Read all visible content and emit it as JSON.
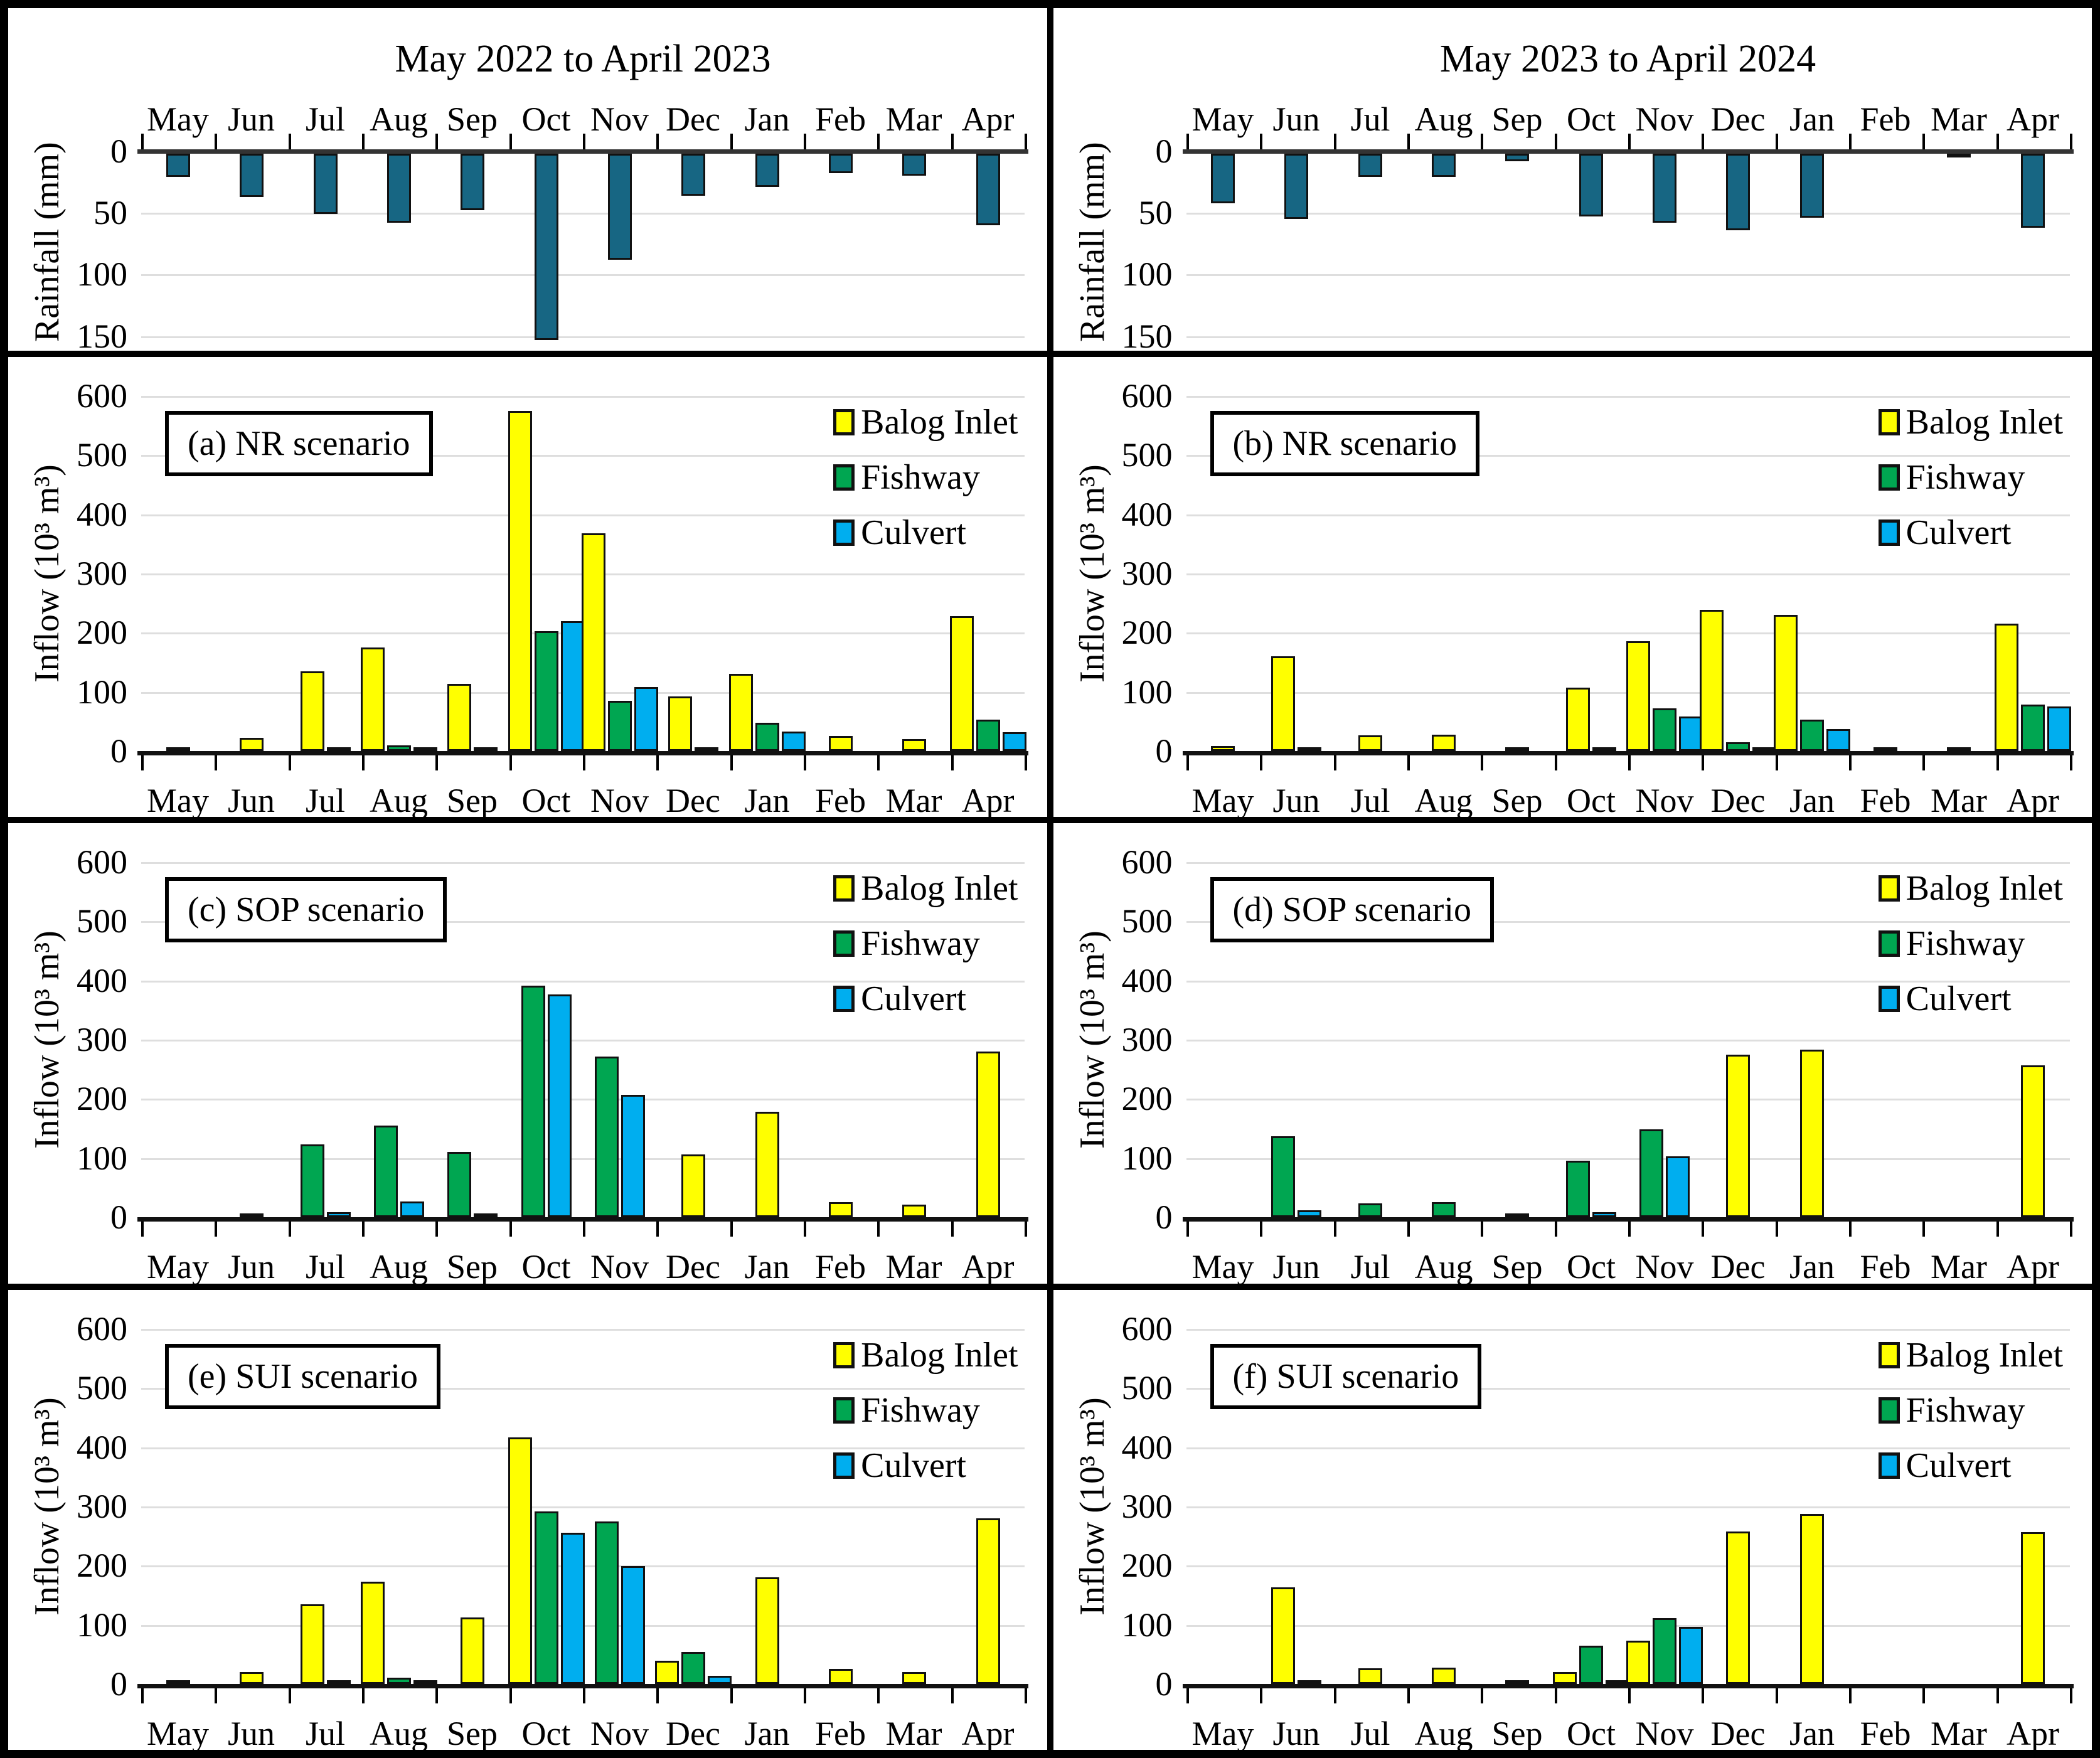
{
  "figure": {
    "type": "multi-panel monthly bar figure",
    "months": [
      "May",
      "Jun",
      "Jul",
      "Aug",
      "Sep",
      "Oct",
      "Nov",
      "Dec",
      "Jan",
      "Feb",
      "Mar",
      "Apr"
    ],
    "colors": {
      "rainfall": "#176683",
      "balog_inlet": "#FFFF00",
      "fishway": "#00A651",
      "culvert": "#00AEEF"
    }
  },
  "chart_data": [
    {
      "id": "rain-left",
      "type": "bar",
      "orientation": "inverted",
      "title": "May 2022 to April 2023",
      "ylabel": "Rainfall (mm)",
      "yticks": [
        0,
        50,
        100,
        150
      ],
      "ylim": [
        0,
        168
      ],
      "categories": [
        "May",
        "Jun",
        "Jul",
        "Aug",
        "Sep",
        "Oct",
        "Nov",
        "Dec",
        "Jan",
        "Feb",
        "Mar",
        "Apr"
      ],
      "series": [
        {
          "name": "Rainfall",
          "color": "#176683",
          "values": [
            19,
            35,
            49,
            56,
            46,
            151,
            86,
            34,
            27,
            16,
            18,
            58
          ]
        }
      ]
    },
    {
      "id": "rain-right",
      "type": "bar",
      "orientation": "inverted",
      "title": "May 2023 to April 2024",
      "ylabel": "Rainfall (mm)",
      "yticks": [
        0,
        50,
        100,
        150
      ],
      "ylim": [
        0,
        168
      ],
      "categories": [
        "May",
        "Jun",
        "Jul",
        "Aug",
        "Sep",
        "Oct",
        "Nov",
        "Dec",
        "Jan",
        "Feb",
        "Mar",
        "Apr"
      ],
      "series": [
        {
          "name": "Rainfall",
          "color": "#176683",
          "values": [
            40,
            53,
            19,
            19,
            6,
            51,
            56,
            62,
            52,
            0,
            3,
            60
          ]
        }
      ]
    },
    {
      "id": "a",
      "type": "bar",
      "panel_label": "(a) NR scenario",
      "ylabel": "Inflow (10³ m³)",
      "yticks": [
        0,
        100,
        200,
        300,
        400,
        500,
        600
      ],
      "ylim": [
        0,
        600
      ],
      "legend": [
        "Balog Inlet",
        "Fishway",
        "Culvert"
      ],
      "categories": [
        "May",
        "Jun",
        "Jul",
        "Aug",
        "Sep",
        "Oct",
        "Nov",
        "Dec",
        "Jan",
        "Feb",
        "Mar",
        "Apr"
      ],
      "series": [
        {
          "name": "Balog Inlet",
          "color": "#FFFF00",
          "values": [
            3,
            22,
            135,
            175,
            113,
            575,
            368,
            92,
            130,
            25,
            20,
            228
          ]
        },
        {
          "name": "Fishway",
          "color": "#00A651",
          "values": [
            0,
            0,
            2,
            10,
            2,
            203,
            85,
            2,
            48,
            0,
            0,
            53
          ]
        },
        {
          "name": "Culvert",
          "color": "#00AEEF",
          "values": [
            0,
            0,
            0,
            2,
            0,
            219,
            108,
            0,
            33,
            0,
            0,
            32
          ]
        }
      ]
    },
    {
      "id": "b",
      "type": "bar",
      "panel_label": "(b) NR scenario",
      "ylabel": "Inflow (10³ m³)",
      "yticks": [
        0,
        100,
        200,
        300,
        400,
        500,
        600
      ],
      "ylim": [
        0,
        600
      ],
      "legend": [
        "Balog Inlet",
        "Fishway",
        "Culvert"
      ],
      "categories": [
        "May",
        "Jun",
        "Jul",
        "Aug",
        "Sep",
        "Oct",
        "Nov",
        "Dec",
        "Jan",
        "Feb",
        "Mar",
        "Apr"
      ],
      "series": [
        {
          "name": "Balog Inlet",
          "color": "#FFFF00",
          "values": [
            8,
            160,
            27,
            28,
            3,
            107,
            185,
            238,
            230,
            3,
            3,
            215
          ]
        },
        {
          "name": "Fishway",
          "color": "#00A651",
          "values": [
            0,
            3,
            0,
            0,
            0,
            3,
            72,
            15,
            53,
            0,
            0,
            78
          ]
        },
        {
          "name": "Culvert",
          "color": "#00AEEF",
          "values": [
            0,
            0,
            0,
            0,
            0,
            0,
            58,
            3,
            37,
            0,
            0,
            75
          ]
        }
      ]
    },
    {
      "id": "c",
      "type": "bar",
      "panel_label": "(c) SOP scenario",
      "ylabel": "Inflow (10³ m³)",
      "yticks": [
        0,
        100,
        200,
        300,
        400,
        500,
        600
      ],
      "ylim": [
        0,
        600
      ],
      "legend": [
        "Balog Inlet",
        "Fishway",
        "Culvert"
      ],
      "categories": [
        "May",
        "Jun",
        "Jul",
        "Aug",
        "Sep",
        "Oct",
        "Nov",
        "Dec",
        "Jan",
        "Feb",
        "Mar",
        "Apr"
      ],
      "series": [
        {
          "name": "Balog Inlet",
          "color": "#FFFF00",
          "values": [
            0,
            0,
            0,
            0,
            0,
            0,
            0,
            106,
            178,
            25,
            21,
            280
          ]
        },
        {
          "name": "Fishway",
          "color": "#00A651",
          "values": [
            0,
            6,
            123,
            155,
            110,
            391,
            271,
            0,
            0,
            0,
            0,
            0
          ]
        },
        {
          "name": "Culvert",
          "color": "#00AEEF",
          "values": [
            0,
            0,
            9,
            27,
            3,
            376,
            207,
            0,
            0,
            0,
            0,
            0
          ]
        }
      ]
    },
    {
      "id": "d",
      "type": "bar",
      "panel_label": "(d) SOP scenario",
      "ylabel": "Inflow (10³ m³)",
      "yticks": [
        0,
        100,
        200,
        300,
        400,
        500,
        600
      ],
      "ylim": [
        0,
        600
      ],
      "legend": [
        "Balog Inlet",
        "Fishway",
        "Culvert"
      ],
      "categories": [
        "May",
        "Jun",
        "Jul",
        "Aug",
        "Sep",
        "Oct",
        "Nov",
        "Dec",
        "Jan",
        "Feb",
        "Mar",
        "Apr"
      ],
      "series": [
        {
          "name": "Balog Inlet",
          "color": "#FFFF00",
          "values": [
            0,
            0,
            0,
            0,
            0,
            0,
            0,
            275,
            283,
            0,
            0,
            257
          ]
        },
        {
          "name": "Fishway",
          "color": "#00A651",
          "values": [
            0,
            137,
            23,
            25,
            3,
            95,
            148,
            0,
            0,
            0,
            0,
            0
          ]
        },
        {
          "name": "Culvert",
          "color": "#00AEEF",
          "values": [
            0,
            12,
            0,
            0,
            0,
            8,
            103,
            0,
            0,
            0,
            0,
            0
          ]
        }
      ]
    },
    {
      "id": "e",
      "type": "bar",
      "panel_label": "(e) SUI scenario",
      "ylabel": "Inflow (10³ m³)",
      "yticks": [
        0,
        100,
        200,
        300,
        400,
        500,
        600
      ],
      "ylim": [
        0,
        600
      ],
      "legend": [
        "Balog Inlet",
        "Fishway",
        "Culvert"
      ],
      "categories": [
        "May",
        "Jun",
        "Jul",
        "Aug",
        "Sep",
        "Oct",
        "Nov",
        "Dec",
        "Jan",
        "Feb",
        "Mar",
        "Apr"
      ],
      "series": [
        {
          "name": "Balog Inlet",
          "color": "#FFFF00",
          "values": [
            3,
            20,
            135,
            173,
            112,
            417,
            0,
            39,
            180,
            25,
            20,
            280
          ]
        },
        {
          "name": "Fishway",
          "color": "#00A651",
          "values": [
            0,
            0,
            3,
            11,
            0,
            292,
            275,
            54,
            0,
            0,
            0,
            0
          ]
        },
        {
          "name": "Culvert",
          "color": "#00AEEF",
          "values": [
            0,
            0,
            0,
            3,
            0,
            256,
            199,
            14,
            0,
            0,
            0,
            0
          ]
        }
      ]
    },
    {
      "id": "f",
      "type": "bar",
      "panel_label": "(f) SUI scenario",
      "ylabel": "Inflow (10³ m³)",
      "yticks": [
        0,
        100,
        200,
        300,
        400,
        500,
        600
      ],
      "ylim": [
        0,
        600
      ],
      "legend": [
        "Balog Inlet",
        "Fishway",
        "Culvert"
      ],
      "categories": [
        "May",
        "Jun",
        "Jul",
        "Aug",
        "Sep",
        "Oct",
        "Nov",
        "Dec",
        "Jan",
        "Feb",
        "Mar",
        "Apr"
      ],
      "series": [
        {
          "name": "Balog Inlet",
          "color": "#FFFF00",
          "values": [
            0,
            163,
            27,
            28,
            3,
            20,
            73,
            258,
            287,
            0,
            0,
            257
          ]
        },
        {
          "name": "Fishway",
          "color": "#00A651",
          "values": [
            0,
            3,
            0,
            0,
            0,
            65,
            111,
            0,
            0,
            0,
            0,
            0
          ]
        },
        {
          "name": "Culvert",
          "color": "#00AEEF",
          "values": [
            0,
            0,
            0,
            0,
            0,
            5,
            96,
            0,
            0,
            0,
            0,
            0
          ]
        }
      ]
    }
  ]
}
